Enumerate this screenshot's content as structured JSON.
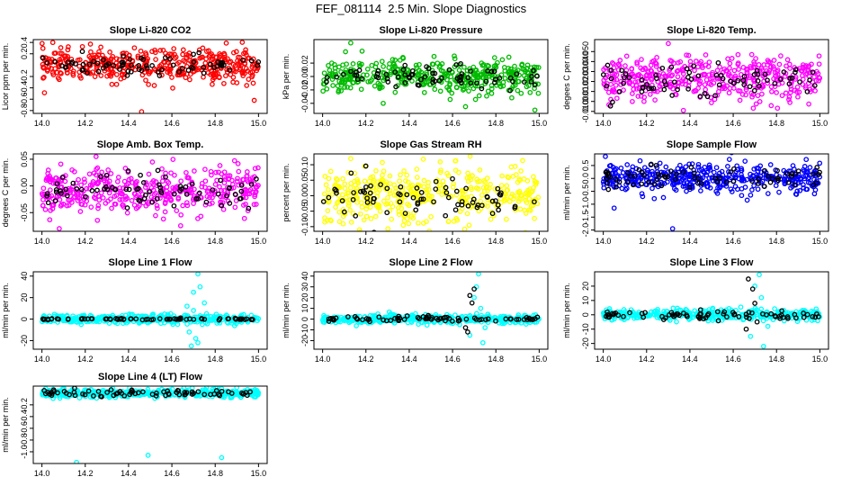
{
  "title": "FEF_081114  2.5 Min. Slope Diagnostics",
  "colors": {
    "black": "#000000"
  },
  "chart_data": [
    {
      "type": "scatter",
      "title": "Slope Li-820 CO2",
      "ylabel": "Licor ppm per min.",
      "xlim": [
        14.0,
        15.0
      ],
      "x_ticks": [
        "14.0",
        "14.2",
        "14.4",
        "14.6",
        "14.8",
        "15.0"
      ],
      "ylim": [
        -0.85,
        0.45
      ],
      "y_ticks": [
        "-0.8",
        "-0.6",
        "-0.4",
        "-0.2",
        "0.2",
        "0.4"
      ],
      "y_tick_values": [
        -0.8,
        -0.6,
        -0.4,
        -0.2,
        0.2,
        0.4
      ],
      "series": [
        {
          "name": "all",
          "color": "#ff0000",
          "count": 420,
          "center": 0.0,
          "spread": 0.14,
          "outliers": [
            [
              14.05,
              0.4
            ],
            [
              14.46,
              -0.82
            ],
            [
              14.98,
              -0.62
            ]
          ]
        },
        {
          "name": "highlight",
          "color": "#000000",
          "count": 75,
          "center": 0.0,
          "spread": 0.1,
          "outliers": []
        }
      ]
    },
    {
      "type": "scatter",
      "title": "Slope Li-820 Pressure",
      "ylabel": "kPa per min.",
      "xlim": [
        14.0,
        15.0
      ],
      "x_ticks": [
        "14.0",
        "14.2",
        "14.4",
        "14.6",
        "14.8",
        "15.0"
      ],
      "ylim": [
        -0.055,
        0.055
      ],
      "y_ticks": [
        "-0.04",
        "-0.02",
        "0.00",
        "0.02"
      ],
      "y_tick_values": [
        -0.04,
        -0.02,
        0.0,
        0.02
      ],
      "series": [
        {
          "name": "all",
          "color": "#00bb00",
          "count": 420,
          "center": 0.0,
          "spread": 0.012,
          "outliers": [
            [
              14.13,
              0.05
            ],
            [
              14.98,
              -0.05
            ],
            [
              14.66,
              -0.045
            ],
            [
              14.28,
              -0.04
            ]
          ]
        },
        {
          "name": "highlight",
          "color": "#000000",
          "count": 75,
          "center": 0.0,
          "spread": 0.008,
          "outliers": []
        }
      ]
    },
    {
      "type": "scatter",
      "title": "Slope Li-820 Temp.",
      "ylabel": "degees C per min.",
      "xlim": [
        14.0,
        15.0
      ],
      "x_ticks": [
        "14.0",
        "14.2",
        "14.4",
        "14.6",
        "14.8",
        "15.0"
      ],
      "ylim": [
        -0.012,
        0.062
      ],
      "y_ticks": [
        "-0.010",
        "0.000",
        "0.010",
        "0.020",
        "0.030",
        "0.040",
        "0.050"
      ],
      "y_tick_values": [
        -0.01,
        0.0,
        0.01,
        0.02,
        0.03,
        0.04,
        0.05
      ],
      "series": [
        {
          "name": "all",
          "color": "#ff00ff",
          "count": 420,
          "center": 0.022,
          "spread": 0.011,
          "outliers": [
            [
              14.3,
              0.058
            ],
            [
              14.37,
              -0.009
            ]
          ]
        },
        {
          "name": "highlight",
          "color": "#000000",
          "count": 75,
          "center": 0.022,
          "spread": 0.008,
          "outliers": []
        }
      ]
    },
    {
      "type": "scatter",
      "title": "Slope Amb. Box Temp.",
      "ylabel": "degrees C per min.",
      "xlim": [
        14.0,
        15.0
      ],
      "x_ticks": [
        "14.0",
        "14.2",
        "14.4",
        "14.6",
        "14.8",
        "15.0"
      ],
      "ylim": [
        -0.085,
        0.06
      ],
      "y_ticks": [
        "-0.05",
        "0.00",
        "0.05"
      ],
      "y_tick_values": [
        -0.05,
        0.0,
        0.05
      ],
      "series": [
        {
          "name": "all",
          "color": "#ff00ff",
          "count": 420,
          "center": -0.01,
          "spread": 0.022,
          "outliers": [
            [
              14.25,
              0.055
            ],
            [
              14.08,
              -0.08
            ]
          ]
        },
        {
          "name": "highlight",
          "color": "#000000",
          "count": 75,
          "center": -0.01,
          "spread": 0.018,
          "outliers": []
        }
      ]
    },
    {
      "type": "scatter",
      "title": "Slope Gas Stream RH",
      "ylabel": "percent per min.",
      "xlim": [
        14.0,
        15.0
      ],
      "x_ticks": [
        "14.0",
        "14.2",
        "14.4",
        "14.6",
        "14.8",
        "15.0"
      ],
      "ylim": [
        -0.115,
        0.135
      ],
      "y_ticks": [
        "-0.10",
        "-0.05",
        "0.00",
        "0.05",
        "0.10"
      ],
      "y_tick_values": [
        -0.1,
        -0.05,
        0.0,
        0.05,
        0.1
      ],
      "series": [
        {
          "name": "all",
          "color": "#ffff00",
          "count": 420,
          "center": 0.0,
          "spread": 0.045,
          "outliers": [
            [
              14.13,
              0.12
            ],
            [
              14.17,
              -0.11
            ]
          ]
        },
        {
          "name": "highlight",
          "color": "#000000",
          "count": 75,
          "center": 0.0,
          "spread": 0.035,
          "outliers": []
        }
      ]
    },
    {
      "type": "scatter",
      "title": "Slope Sample Flow",
      "ylabel": "ml/min per min.",
      "xlim": [
        14.0,
        15.0
      ],
      "x_ticks": [
        "14.0",
        "14.2",
        "14.4",
        "14.6",
        "14.8",
        "15.0"
      ],
      "ylim": [
        -2.05,
        0.95
      ],
      "y_ticks": [
        "-2.0",
        "-1.5",
        "-1.0",
        "-0.5",
        "0.0",
        "0.5"
      ],
      "y_tick_values": [
        -2.0,
        -1.5,
        -1.0,
        -0.5,
        0.0,
        0.5
      ],
      "series": [
        {
          "name": "all",
          "color": "#0000ff",
          "count": 420,
          "center": 0.0,
          "spread": 0.28,
          "outliers": [
            [
              14.01,
              0.85
            ],
            [
              14.32,
              -1.95
            ],
            [
              14.05,
              -1.15
            ]
          ]
        },
        {
          "name": "highlight",
          "color": "#000000",
          "count": 75,
          "center": 0.05,
          "spread": 0.22,
          "outliers": []
        }
      ]
    },
    {
      "type": "scatter",
      "title": "Slope Line 1 Flow",
      "ylabel": "ml/min per min.",
      "xlim": [
        14.0,
        15.0
      ],
      "x_ticks": [
        "14.0",
        "14.2",
        "14.4",
        "14.6",
        "14.8",
        "15.0"
      ],
      "ylim": [
        -28,
        44
      ],
      "y_ticks": [
        "-20",
        "0",
        "20",
        "40"
      ],
      "y_tick_values": [
        -20,
        0,
        20,
        40
      ],
      "series": [
        {
          "name": "all",
          "color": "#00ffff",
          "count": 420,
          "center": 0.0,
          "spread": 2.0,
          "outliers": [
            [
              14.72,
              42
            ],
            [
              14.7,
              25
            ],
            [
              14.75,
              15
            ],
            [
              14.68,
              -12
            ],
            [
              14.72,
              -22
            ],
            [
              14.7,
              8
            ],
            [
              14.74,
              -5
            ],
            [
              14.73,
              30
            ],
            [
              14.69,
              -25
            ],
            [
              14.76,
              5
            ],
            [
              14.71,
              -18
            ],
            [
              14.67,
              12
            ]
          ]
        },
        {
          "name": "highlight",
          "color": "#000000",
          "count": 75,
          "center": 0.0,
          "spread": 0.3,
          "outliers": []
        }
      ]
    },
    {
      "type": "scatter",
      "title": "Slope Line 2 Flow",
      "ylabel": "ml/min per min.",
      "xlim": [
        14.0,
        15.0
      ],
      "x_ticks": [
        "14.0",
        "14.2",
        "14.4",
        "14.6",
        "14.8",
        "15.0"
      ],
      "ylim": [
        -28,
        44
      ],
      "y_ticks": [
        "-20",
        "-10",
        "0",
        "10",
        "20",
        "30",
        "40"
      ],
      "y_tick_values": [
        -20,
        -10,
        0,
        10,
        20,
        30,
        40
      ],
      "series": [
        {
          "name": "all",
          "color": "#00ffff",
          "count": 420,
          "center": 0.0,
          "spread": 2.0,
          "outliers": [
            [
              14.72,
              42
            ],
            [
              14.7,
              20
            ],
            [
              14.74,
              -22
            ],
            [
              14.68,
              -15
            ],
            [
              14.73,
              10
            ],
            [
              14.71,
              30
            ],
            [
              14.75,
              -8
            ]
          ]
        },
        {
          "name": "highlight",
          "color": "#000000",
          "count": 75,
          "center": 0.0,
          "spread": 1.5,
          "outliers": [
            [
              14.68,
              22
            ],
            [
              14.7,
              28
            ],
            [
              14.66,
              -8
            ],
            [
              14.69,
              15
            ],
            [
              14.67,
              -12
            ]
          ]
        }
      ]
    },
    {
      "type": "scatter",
      "title": "Slope Line 3 Flow",
      "ylabel": "ml/min per min.",
      "xlim": [
        14.0,
        15.0
      ],
      "x_ticks": [
        "14.0",
        "14.2",
        "14.4",
        "14.6",
        "14.8",
        "15.0"
      ],
      "ylim": [
        -24,
        30
      ],
      "y_ticks": [
        "-20",
        "-10",
        "0",
        "10",
        "20"
      ],
      "y_tick_values": [
        -20,
        -10,
        0,
        10,
        20
      ],
      "series": [
        {
          "name": "all",
          "color": "#00ffff",
          "count": 420,
          "center": 0.0,
          "spread": 1.8,
          "outliers": [
            [
              14.72,
              28
            ],
            [
              14.7,
              20
            ],
            [
              14.74,
              -22
            ],
            [
              14.68,
              -15
            ],
            [
              14.73,
              12
            ],
            [
              14.76,
              -8
            ]
          ]
        },
        {
          "name": "highlight",
          "color": "#000000",
          "count": 75,
          "center": 0.0,
          "spread": 1.5,
          "outliers": [
            [
              14.67,
              25
            ],
            [
              14.69,
              18
            ],
            [
              14.66,
              -10
            ],
            [
              14.7,
              8
            ],
            [
              14.71,
              -5
            ]
          ]
        }
      ]
    },
    {
      "type": "scatter",
      "title": "Slope Line 4 (LT) Flow",
      "ylabel": "ml/min per min.",
      "xlim": [
        14.0,
        15.0
      ],
      "x_ticks": [
        "14.0",
        "14.2",
        "14.4",
        "14.6",
        "14.8",
        "15.0"
      ],
      "ylim": [
        -1.2,
        0.12
      ],
      "y_ticks": [
        "-1.0",
        "-0.8",
        "-0.6",
        "-0.4",
        "-0.2"
      ],
      "y_tick_values": [
        -1.0,
        -0.8,
        -0.6,
        -0.4,
        -0.2
      ],
      "series": [
        {
          "name": "all",
          "color": "#00ffff",
          "count": 420,
          "center": 0.0,
          "spread": 0.035,
          "outliers": [
            [
              14.16,
              -1.18
            ],
            [
              14.49,
              -1.06
            ],
            [
              14.83,
              -1.1
            ]
          ]
        },
        {
          "name": "highlight",
          "color": "#000000",
          "count": 75,
          "center": 0.0,
          "spread": 0.03,
          "outliers": []
        }
      ]
    }
  ]
}
